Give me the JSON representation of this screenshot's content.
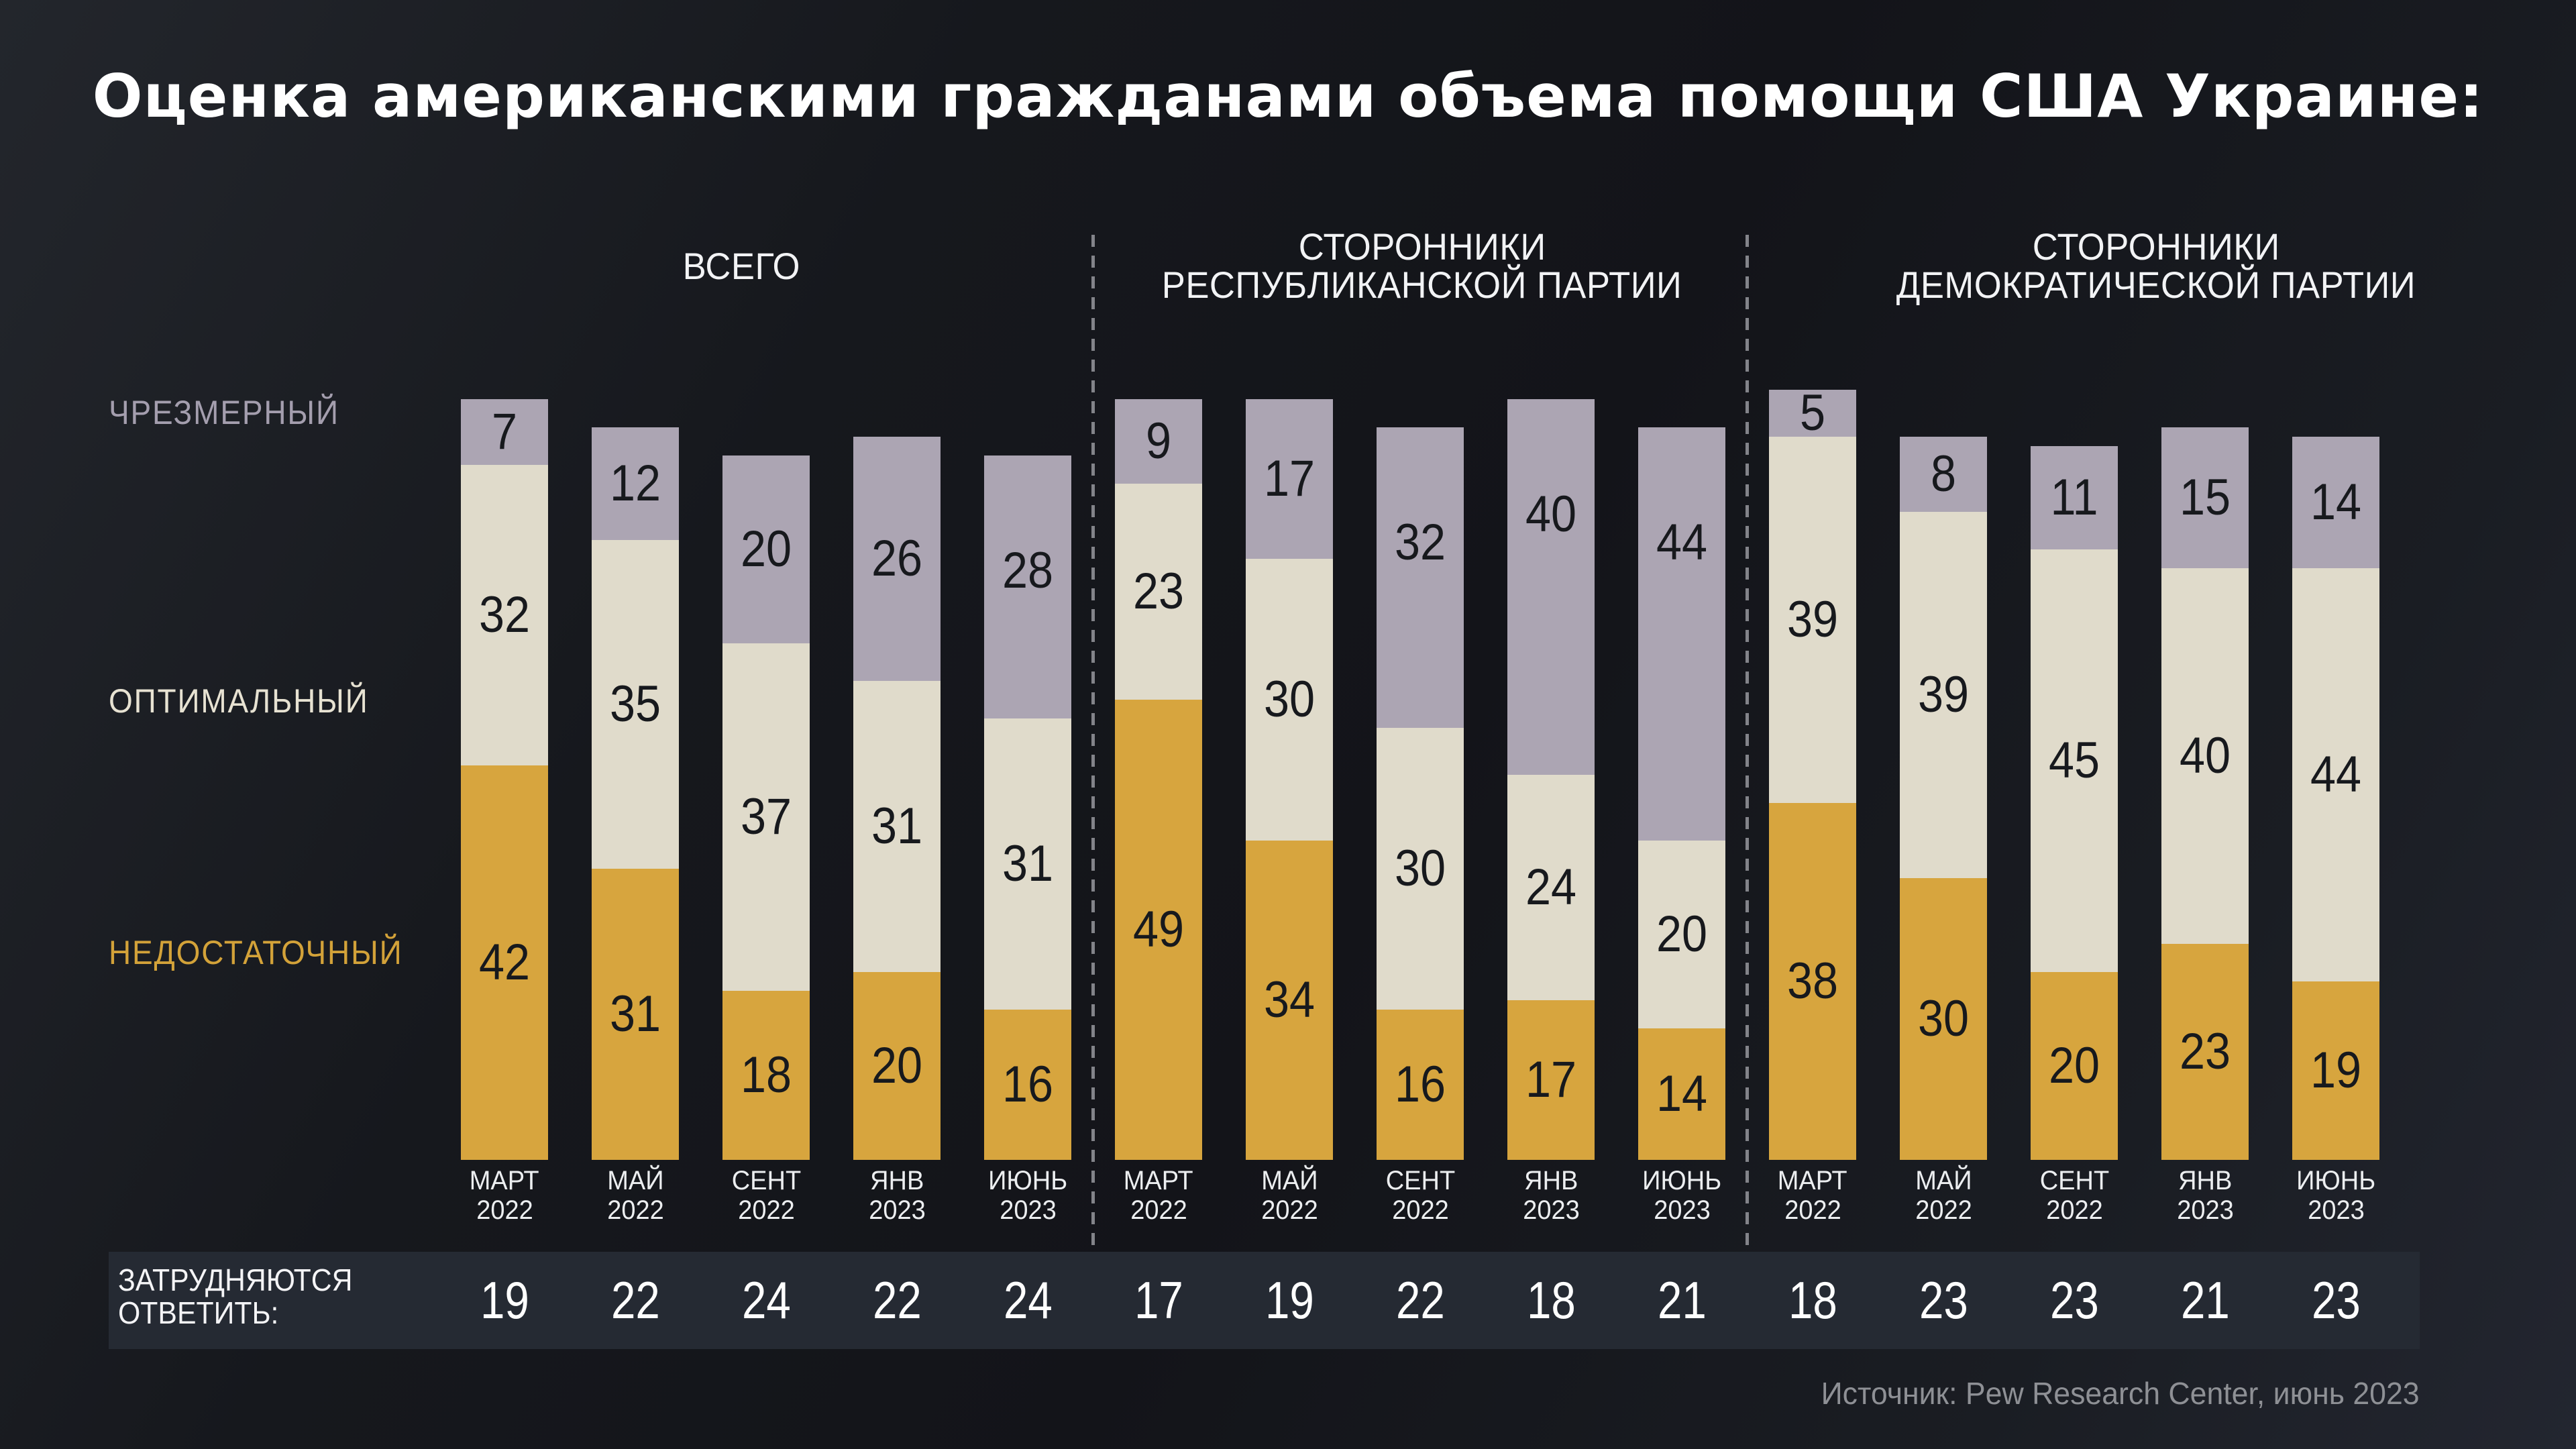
{
  "title": "Оценка американскими гражданами объема помощи США Украине:",
  "source": "Источник: Pew Research Center, июнь 2023",
  "legend": {
    "excessive": {
      "label": "ЧРЕЗМЕРНЫЙ",
      "color": "#aca5b3",
      "label_color": "#a49eae"
    },
    "optimal": {
      "label": "ОПТИМАЛЬНЫЙ",
      "color": "#e0dbcb",
      "label_color": "#e7e2d2"
    },
    "insufficient": {
      "label": "НЕДОСТАТОЧНЫЙ",
      "color": "#d7a53e",
      "label_color": "#d3a239"
    }
  },
  "undecided_label_line1": "ЗАТРУДНЯЮТСЯ",
  "undecided_label_line2": "ОТВЕТИТЬ:",
  "chart_data": {
    "type": "bar",
    "stacked": true,
    "unit": "percent of respondents",
    "series_order": [
      "excessive",
      "optimal",
      "insufficient"
    ],
    "series_labels": [
      "ЧРЕЗМЕРНЫЙ",
      "ОПТИМАЛЬНЫЙ",
      "НЕДОСТАТОЧНЫЙ",
      "ЗАТРУДНЯЮТСЯ ОТВЕТИТЬ"
    ],
    "groups": [
      {
        "label_lines": [
          "ВСЕГО"
        ],
        "bars": [
          {
            "month": "МАРТ",
            "year": "2022",
            "excessive": 7,
            "optimal": 32,
            "insufficient": 42,
            "undecided": 19
          },
          {
            "month": "МАЙ",
            "year": "2022",
            "excessive": 12,
            "optimal": 35,
            "insufficient": 31,
            "undecided": 22
          },
          {
            "month": "СЕНТ",
            "year": "2022",
            "excessive": 20,
            "optimal": 37,
            "insufficient": 18,
            "undecided": 24
          },
          {
            "month": "ЯНВ",
            "year": "2023",
            "excessive": 26,
            "optimal": 31,
            "insufficient": 20,
            "undecided": 22
          },
          {
            "month": "ИЮНЬ",
            "year": "2023",
            "excessive": 28,
            "optimal": 31,
            "insufficient": 16,
            "undecided": 24
          }
        ]
      },
      {
        "label_lines": [
          "СТОРОННИКИ",
          "РЕСПУБЛИКАНСКОЙ ПАРТИИ"
        ],
        "bars": [
          {
            "month": "МАРТ",
            "year": "2022",
            "excessive": 9,
            "optimal": 23,
            "insufficient": 49,
            "undecided": 17
          },
          {
            "month": "МАЙ",
            "year": "2022",
            "excessive": 17,
            "optimal": 30,
            "insufficient": 34,
            "undecided": 19
          },
          {
            "month": "СЕНТ",
            "year": "2022",
            "excessive": 32,
            "optimal": 30,
            "insufficient": 16,
            "undecided": 22
          },
          {
            "month": "ЯНВ",
            "year": "2023",
            "excessive": 40,
            "optimal": 24,
            "insufficient": 17,
            "undecided": 18
          },
          {
            "month": "ИЮНЬ",
            "year": "2023",
            "excessive": 44,
            "optimal": 20,
            "insufficient": 14,
            "undecided": 21
          }
        ]
      },
      {
        "label_lines": [
          "СТОРОННИКИ",
          "ДЕМОКРАТИЧЕСКОЙ ПАРТИИ"
        ],
        "bars": [
          {
            "month": "МАРТ",
            "year": "2022",
            "excessive": 5,
            "optimal": 39,
            "insufficient": 38,
            "undecided": 18
          },
          {
            "month": "МАЙ",
            "year": "2022",
            "excessive": 8,
            "optimal": 39,
            "insufficient": 30,
            "undecided": 23
          },
          {
            "month": "СЕНТ",
            "year": "2022",
            "excessive": 11,
            "optimal": 45,
            "insufficient": 20,
            "undecided": 23
          },
          {
            "month": "ЯНВ",
            "year": "2023",
            "excessive": 15,
            "optimal": 40,
            "insufficient": 23,
            "undecided": 21
          },
          {
            "month": "ИЮНЬ",
            "year": "2023",
            "excessive": 14,
            "optimal": 44,
            "insufficient": 19,
            "undecided": 23
          }
        ]
      }
    ]
  }
}
